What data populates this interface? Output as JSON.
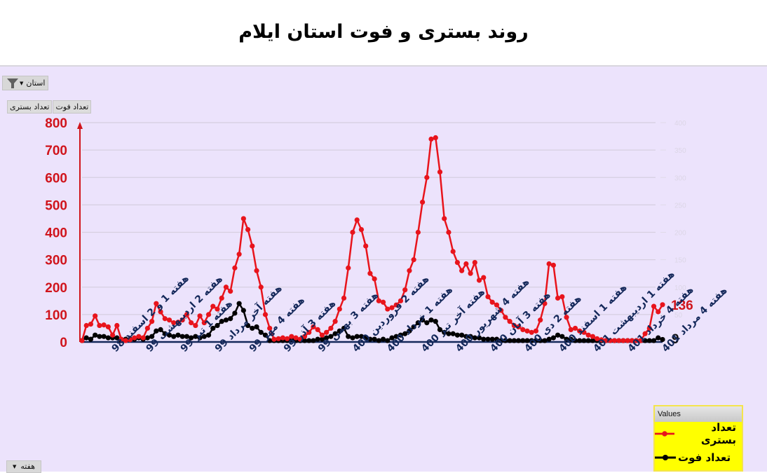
{
  "title": "روند بستری و فوت استان ایلام",
  "controls": {
    "filter_label": "استان",
    "field_buttons": [
      "تعداد بستری",
      "تعداد فوت"
    ],
    "axis_field_label": "هفته"
  },
  "legend": {
    "header": "Values",
    "items": [
      {
        "label": "تعداد بستری",
        "color": "#e8141c"
      },
      {
        "label": "تعداد فوت",
        "color": "#000000"
      }
    ]
  },
  "colors": {
    "hospitalized": "#e8141c",
    "deaths": "#000000",
    "left_axis": "#d0141c",
    "x_labels": "#14285a",
    "panel_bg": "#ece3fc",
    "legend_bg": "#ffff00"
  },
  "chart_data": {
    "type": "line",
    "title": "روند بستری و فوت استان ایلام",
    "xlabel": "هفته",
    "ylabel": "تعداد بستری",
    "ylim": [
      0,
      800
    ],
    "y_ticks": [
      0,
      100,
      200,
      300,
      400,
      500,
      600,
      700,
      800
    ],
    "y2lim": [
      0,
      400
    ],
    "y2_ticks": [
      50,
      100,
      150,
      200,
      250,
      300,
      350,
      400
    ],
    "grid": true,
    "legend_position": "bottom-right",
    "tick_labels": [
      "هفته 1 و 2 اسفند 98",
      "هفته 2 اردیبهشت 99",
      "هفته 1 تیر 99",
      "هفته آخر مرداد 99",
      "هفته 4 مهر 99",
      "هفته 3 آذر 99",
      "هفته 3 بهمن 99",
      "هفته 2 فروردین 400",
      "هفته 1 خرداد 400",
      "هفته آخر تیر 400",
      "هفته 4 شهریور 400",
      "هفته 3 آبان 400",
      "هفته 2 دی 400",
      "هفته 1 اسفند 400",
      "هفته 1 اردیبهشت 401",
      "هفته 4 خرداد 401",
      "هفته 4 مرداد 401"
    ],
    "end_labels": {
      "hospitalized": "136",
      "deaths": "9"
    },
    "series": [
      {
        "name": "تعداد بستری",
        "values": [
          5,
          60,
          65,
          95,
          60,
          62,
          55,
          25,
          60,
          10,
          5,
          8,
          15,
          20,
          15,
          50,
          75,
          140,
          110,
          85,
          80,
          70,
          72,
          80,
          100,
          70,
          60,
          95,
          70,
          100,
          130,
          120,
          160,
          200,
          185,
          270,
          320,
          450,
          410,
          350,
          260,
          200,
          100,
          50,
          10,
          12,
          15,
          12,
          20,
          15,
          10,
          20,
          35,
          55,
          45,
          25,
          35,
          50,
          75,
          120,
          160,
          270,
          400,
          445,
          410,
          350,
          250,
          230,
          150,
          145,
          120,
          125,
          135,
          150,
          190,
          260,
          300,
          400,
          510,
          600,
          740,
          745,
          620,
          450,
          400,
          330,
          290,
          260,
          285,
          250,
          290,
          225,
          235,
          165,
          145,
          135,
          115,
          90,
          75,
          60,
          55,
          45,
          40,
          35,
          40,
          80,
          140,
          285,
          280,
          160,
          165,
          90,
          45,
          50,
          40,
          35,
          25,
          20,
          12,
          8,
          5,
          5,
          5,
          5,
          5,
          5,
          5,
          5,
          5,
          30,
          50,
          130,
          110,
          136
        ]
      },
      {
        "name": "تعداد فوت",
        "values": [
          5,
          15,
          10,
          25,
          20,
          20,
          15,
          15,
          15,
          5,
          10,
          10,
          10,
          15,
          10,
          15,
          20,
          40,
          45,
          30,
          25,
          20,
          25,
          20,
          20,
          15,
          20,
          15,
          20,
          25,
          50,
          60,
          75,
          80,
          85,
          105,
          140,
          115,
          60,
          50,
          55,
          35,
          25,
          5,
          5,
          5,
          5,
          5,
          10,
          5,
          5,
          5,
          5,
          5,
          10,
          10,
          15,
          20,
          30,
          40,
          50,
          20,
          15,
          20,
          20,
          15,
          10,
          10,
          5,
          10,
          5,
          15,
          20,
          25,
          30,
          40,
          55,
          70,
          80,
          70,
          80,
          75,
          45,
          35,
          30,
          30,
          25,
          25,
          20,
          20,
          15,
          15,
          10,
          10,
          10,
          10,
          5,
          5,
          5,
          5,
          5,
          5,
          5,
          5,
          5,
          5,
          5,
          10,
          15,
          25,
          20,
          10,
          10,
          5,
          5,
          5,
          5,
          5,
          5,
          5,
          5,
          5,
          5,
          5,
          5,
          5,
          5,
          5,
          5,
          5,
          5,
          5,
          15,
          9
        ]
      }
    ]
  }
}
